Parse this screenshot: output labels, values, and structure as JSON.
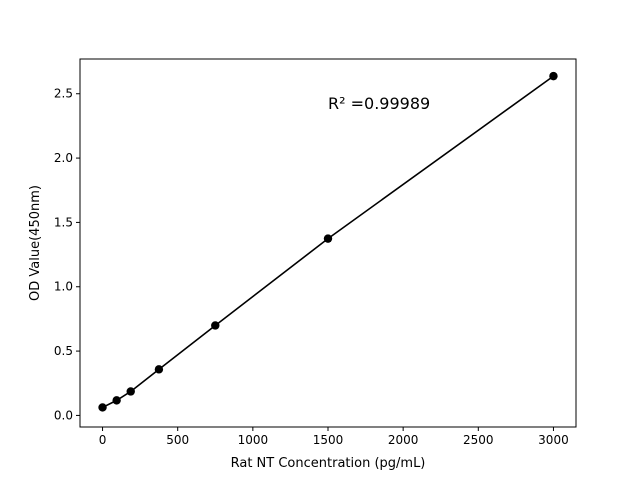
{
  "chart_data": {
    "type": "scatter",
    "title": "",
    "xlabel": "Rat NT Concentration (pg/mL)",
    "ylabel": "OD Value(450nm)",
    "xlim": [
      -150,
      3150
    ],
    "ylim": [
      -0.09,
      2.77
    ],
    "xticks": [
      0,
      500,
      1000,
      1500,
      2000,
      2500,
      3000
    ],
    "yticks": [
      0.0,
      0.5,
      1.0,
      1.5,
      2.0,
      2.5
    ],
    "xtick_labels": [
      "0",
      "500",
      "1000",
      "1500",
      "2000",
      "2500",
      "3000"
    ],
    "ytick_labels": [
      "0.0",
      "0.5",
      "1.0",
      "1.5",
      "2.0",
      "2.5"
    ],
    "grid": false,
    "series": [
      {
        "x": [
          0,
          93.75,
          187.5,
          375,
          750,
          1500,
          3000
        ],
        "y": [
          0.062,
          0.117,
          0.186,
          0.358,
          0.699,
          1.374,
          2.637
        ],
        "marker": "circle",
        "line": true,
        "color": "#000000"
      }
    ],
    "annotation": "R² =0.99989"
  }
}
